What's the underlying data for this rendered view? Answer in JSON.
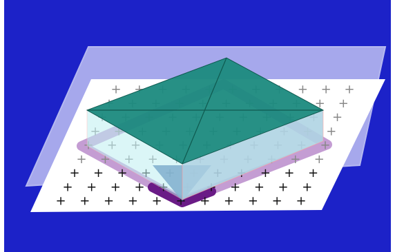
{
  "scene": {
    "background_color": "#1c22c8",
    "upper_plane_color": "#a6a8ec",
    "base_plane_color": "#ffffff",
    "pyramid_top_color": "#1b8a7e",
    "pyramid_edge_color": "#0f5a50",
    "prism_side_color": "#bfeff2",
    "prism_front_color": "#b0d4e4",
    "bottom_tip_color": "#3d6aa8",
    "footprint_color": "#a05ab4",
    "grid_mark_glyph": "+",
    "grid_mark_color_near": "#111111",
    "grid_mark_color_far": "#888888"
  }
}
